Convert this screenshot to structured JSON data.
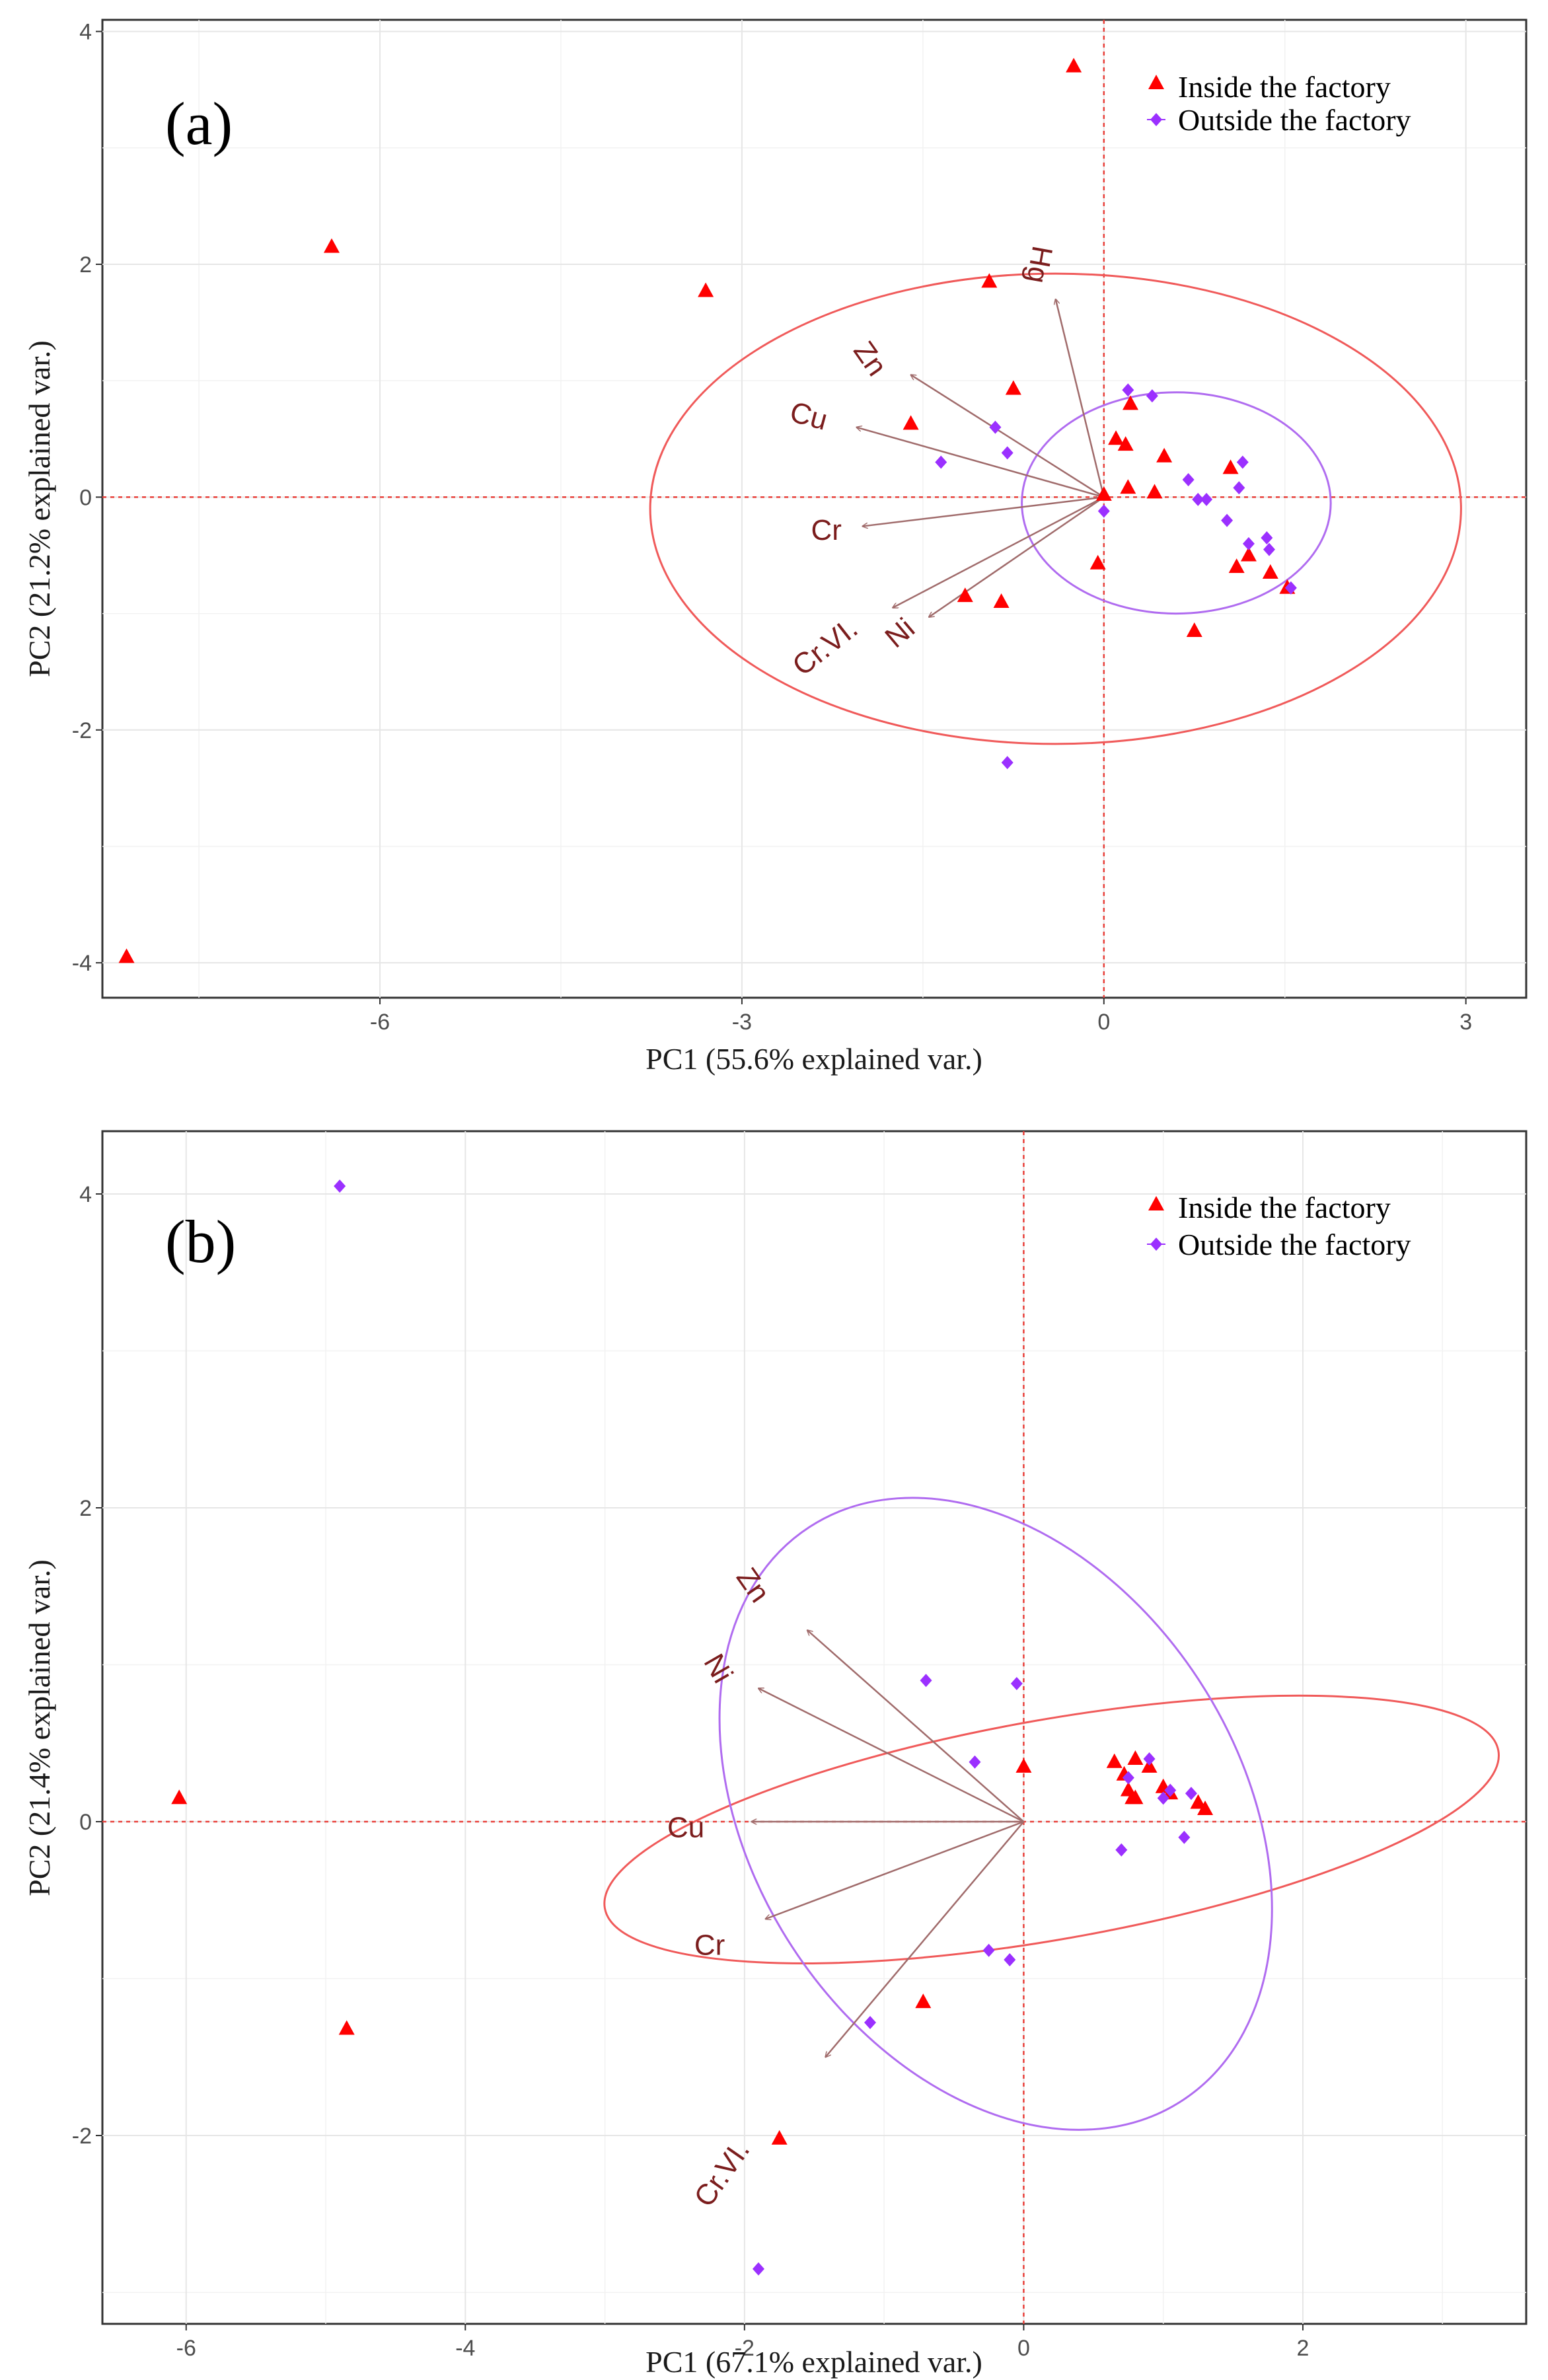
{
  "chart_data": [
    {
      "type": "scatter",
      "subtype": "pca-biplot",
      "panel_label": "(a)",
      "xlabel": "PC1 (55.6% explained var.)",
      "ylabel": "PC2 (21.2% explained var.)",
      "xlim": [
        -8.3,
        3.5
      ],
      "ylim": [
        -4.3,
        4.1
      ],
      "xticks": [
        -6,
        -3,
        0,
        3
      ],
      "xtick_labels": [
        "-6",
        "-3",
        "0",
        "3"
      ],
      "yticks": [
        -4,
        -2,
        0,
        2,
        4
      ],
      "ytick_labels": [
        "-4",
        "-2",
        "0",
        "2",
        "4"
      ],
      "grid": true,
      "legend_position": "top-right",
      "series": [
        {
          "name": "Inside the factory",
          "marker": "triangle",
          "color": "#ff0000",
          "points": [
            [
              -8.1,
              -3.95
            ],
            [
              -6.4,
              2.15
            ],
            [
              -3.3,
              1.77
            ],
            [
              -0.25,
              3.7
            ],
            [
              -0.95,
              1.85
            ],
            [
              -1.6,
              0.63
            ],
            [
              -0.75,
              0.93
            ],
            [
              0.1,
              0.5
            ],
            [
              0.18,
              0.45
            ],
            [
              0.22,
              0.8
            ],
            [
              0.5,
              0.35
            ],
            [
              0.2,
              0.08
            ],
            [
              0.42,
              0.04
            ],
            [
              1.05,
              0.25
            ],
            [
              1.1,
              -0.6
            ],
            [
              1.2,
              -0.5
            ],
            [
              1.38,
              -0.65
            ],
            [
              1.52,
              -0.78
            ],
            [
              0.75,
              -1.15
            ],
            [
              -0.05,
              -0.57
            ],
            [
              -1.15,
              -0.85
            ],
            [
              -0.85,
              -0.9
            ],
            [
              0.0,
              0.02
            ]
          ]
        },
        {
          "name": "Outside the factory",
          "marker": "diamond",
          "color": "#9b30ff",
          "points": [
            [
              0.2,
              0.92
            ],
            [
              0.4,
              0.87
            ],
            [
              -0.9,
              0.6
            ],
            [
              -1.35,
              0.3
            ],
            [
              -0.8,
              0.38
            ],
            [
              0.7,
              0.15
            ],
            [
              0.78,
              -0.02
            ],
            [
              0.85,
              -0.02
            ],
            [
              1.15,
              0.3
            ],
            [
              1.12,
              0.08
            ],
            [
              1.02,
              -0.2
            ],
            [
              1.2,
              -0.4
            ],
            [
              1.35,
              -0.35
            ],
            [
              1.37,
              -0.45
            ],
            [
              1.55,
              -0.78
            ],
            [
              0.0,
              -0.12
            ],
            [
              -0.8,
              -2.28
            ]
          ]
        }
      ],
      "ellipses": [
        {
          "group": "Inside the factory",
          "color": "#f05a5a",
          "center": [
            -0.4,
            -0.1
          ],
          "rx": 3.36,
          "ry": 2.02,
          "angle_deg": 0
        },
        {
          "group": "Outside the factory",
          "color": "#b06cf0",
          "center": [
            0.6,
            -0.05
          ],
          "rx": 1.28,
          "ry": 0.95,
          "angle_deg": 0
        }
      ],
      "loadings": [
        {
          "name": "Hg",
          "end": [
            -0.4,
            1.7
          ],
          "label_at": [
            -0.55,
            2.0
          ],
          "label_rot": 100
        },
        {
          "name": "Zn",
          "end": [
            -1.6,
            1.05
          ],
          "label_at": [
            -1.95,
            1.18
          ],
          "label_rot": 55
        },
        {
          "name": "Cu",
          "end": [
            -2.05,
            0.6
          ],
          "label_at": [
            -2.45,
            0.68
          ],
          "label_rot": 15
        },
        {
          "name": "Cr",
          "end": [
            -2.0,
            -0.25
          ],
          "label_at": [
            -2.3,
            -0.3
          ],
          "label_rot": 0
        },
        {
          "name": "Cr.VI.",
          "end": [
            -1.75,
            -0.95
          ],
          "label_at": [
            -2.3,
            -1.3
          ],
          "label_rot": -38
        },
        {
          "name": "Ni",
          "end": [
            -1.45,
            -1.03
          ],
          "label_at": [
            -1.68,
            -1.18
          ],
          "label_rot": -40
        }
      ]
    },
    {
      "type": "scatter",
      "subtype": "pca-biplot",
      "panel_label": "(b)",
      "xlabel": "PC1 (67.1% explained var.)",
      "ylabel": "PC2 (21.4% explained var.)",
      "xlim": [
        -6.6,
        3.6
      ],
      "ylim": [
        -3.2,
        4.4
      ],
      "xticks": [
        -6,
        -4,
        -2,
        0,
        2
      ],
      "xtick_labels": [
        "-6",
        "-4",
        "-2",
        "0",
        "2"
      ],
      "yticks": [
        -2,
        0,
        2,
        4
      ],
      "ytick_labels": [
        "-2",
        "0",
        "2",
        "4"
      ],
      "grid": true,
      "legend_position": "top-right",
      "series": [
        {
          "name": "Inside the factory",
          "marker": "triangle",
          "color": "#ff0000",
          "points": [
            [
              -6.05,
              0.15
            ],
            [
              -4.85,
              -1.32
            ],
            [
              -1.75,
              -2.02
            ],
            [
              -0.72,
              -1.15
            ],
            [
              0.0,
              0.35
            ],
            [
              0.65,
              0.38
            ],
            [
              0.72,
              0.3
            ],
            [
              0.8,
              0.4
            ],
            [
              0.9,
              0.35
            ],
            [
              0.75,
              0.2
            ],
            [
              0.8,
              0.15
            ],
            [
              1.0,
              0.22
            ],
            [
              1.05,
              0.18
            ],
            [
              1.25,
              0.12
            ],
            [
              1.3,
              0.08
            ],
            [
              0.78,
              0.15
            ]
          ]
        },
        {
          "name": "Outside the factory",
          "marker": "diamond",
          "color": "#9b30ff",
          "points": [
            [
              -4.9,
              4.05
            ],
            [
              -0.7,
              0.9
            ],
            [
              -0.05,
              0.88
            ],
            [
              -0.35,
              0.38
            ],
            [
              0.9,
              0.4
            ],
            [
              0.75,
              0.28
            ],
            [
              1.0,
              0.15
            ],
            [
              1.05,
              0.2
            ],
            [
              1.2,
              0.18
            ],
            [
              0.7,
              -0.18
            ],
            [
              1.15,
              -0.1
            ],
            [
              -0.25,
              -0.82
            ],
            [
              -0.1,
              -0.88
            ],
            [
              -1.1,
              -1.28
            ],
            [
              -1.9,
              -2.85
            ]
          ]
        }
      ],
      "ellipses": [
        {
          "group": "Inside the factory",
          "color": "#f05a5a",
          "center": [
            0.2,
            -0.05
          ],
          "rx": 3.25,
          "ry": 0.7,
          "angle_deg": 10
        },
        {
          "group": "Outside the factory",
          "color": "#b06cf0",
          "center": [
            -0.2,
            0.05
          ],
          "rx": 2.45,
          "ry": 1.55,
          "angle_deg": -57
        }
      ],
      "loadings": [
        {
          "name": "Zn",
          "end": [
            -1.55,
            1.22
          ],
          "label_at": [
            -1.95,
            1.5
          ],
          "label_rot": 55
        },
        {
          "name": "Ni",
          "end": [
            -1.9,
            0.85
          ],
          "label_at": [
            -2.2,
            0.97
          ],
          "label_rot": 60
        },
        {
          "name": "Cu",
          "end": [
            -1.95,
            0.0
          ],
          "label_at": [
            -2.42,
            -0.05
          ],
          "label_rot": 0
        },
        {
          "name": "Cr",
          "end": [
            -1.85,
            -0.62
          ],
          "label_at": [
            -2.25,
            -0.8
          ],
          "label_rot": 0
        },
        {
          "name": "Cr.VI.",
          "end": [
            -1.42,
            -1.5
          ],
          "label_at": [
            -2.15,
            -2.25
          ],
          "label_rot": -55
        }
      ]
    }
  ]
}
